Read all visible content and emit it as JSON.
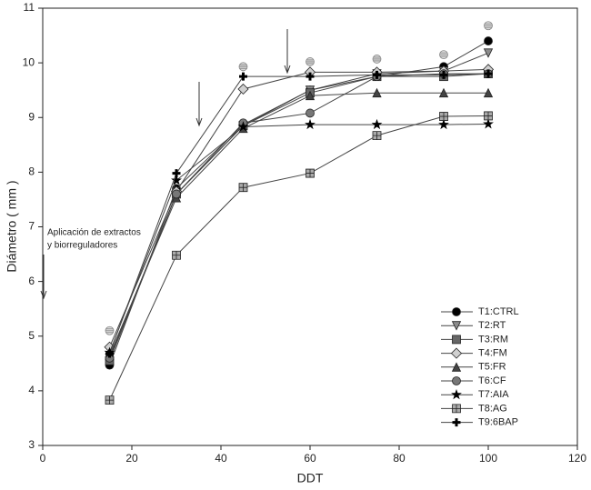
{
  "chart_data": {
    "type": "line",
    "xlabel": "DDT",
    "ylabel": "Diámetro ( mm )",
    "annotations": [
      "Aplicación de extractos",
      "y biorreguladores"
    ],
    "x": [
      15,
      30,
      45,
      60,
      75,
      90,
      100
    ],
    "xlim": [
      0,
      120
    ],
    "xticks": [
      0,
      20,
      40,
      60,
      80,
      100,
      120
    ],
    "ylim": [
      3,
      11
    ],
    "yticks": [
      3,
      4,
      5,
      6,
      7,
      8,
      9,
      10,
      11
    ],
    "legend": "lower right",
    "series": [
      {
        "name": "T1:CTRL",
        "color": "#000000",
        "marker": "circle",
        "values": [
          4.47,
          7.7,
          8.87,
          9.5,
          9.75,
          9.93,
          10.4
        ]
      },
      {
        "name": "T2:RT",
        "color": "#8c8c8c",
        "marker": "triangle-down",
        "values": [
          4.6,
          7.6,
          8.85,
          9.5,
          9.8,
          9.85,
          10.18
        ]
      },
      {
        "name": "T3:RM",
        "color": "#666666",
        "marker": "square",
        "values": [
          4.55,
          7.6,
          8.85,
          9.45,
          9.75,
          9.75,
          9.8
        ]
      },
      {
        "name": "T4:FM",
        "color": "#d0d0d0",
        "marker": "diamond",
        "values": [
          4.8,
          7.65,
          9.52,
          9.83,
          9.83,
          9.85,
          9.88
        ]
      },
      {
        "name": "T5:FR",
        "color": "#444444",
        "marker": "triangle-up",
        "values": [
          4.65,
          7.53,
          8.8,
          9.4,
          9.45,
          9.45,
          9.45
        ]
      },
      {
        "name": "T6:CF",
        "color": "#777777",
        "marker": "circle",
        "values": [
          4.6,
          7.6,
          8.9,
          9.08,
          9.75,
          9.8,
          9.8
        ]
      },
      {
        "name": "T7:AIA",
        "color": "#000000",
        "marker": "star",
        "values": [
          4.7,
          7.85,
          8.83,
          8.87,
          8.87,
          8.87,
          8.88
        ]
      },
      {
        "name": "T8:AG",
        "color": "#aaaaaa",
        "marker": "square-cross",
        "values": [
          3.83,
          6.48,
          7.72,
          7.98,
          8.67,
          9.02,
          9.03
        ]
      },
      {
        "name": "T9:6BAP",
        "color": "#000000",
        "marker": "plus",
        "values": [
          4.68,
          7.98,
          9.75,
          9.75,
          9.78,
          9.78,
          9.8
        ]
      },
      {
        "color": "#d8d8d8",
        "marker": "striped",
        "values": [
          5.1,
          null,
          9.93,
          10.02,
          10.07,
          10.15,
          10.68
        ]
      }
    ]
  }
}
